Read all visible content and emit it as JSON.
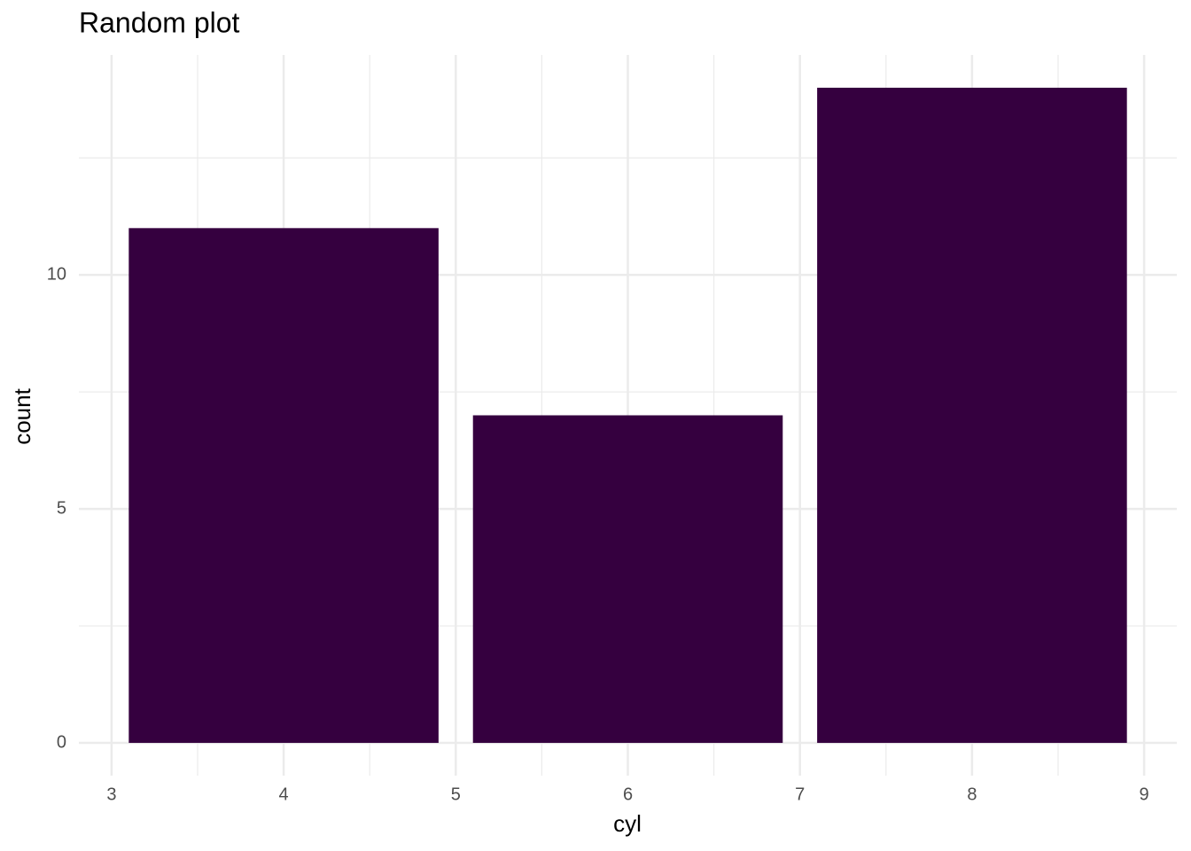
{
  "chart_data": {
    "type": "bar",
    "title": "Random plot",
    "x_label": "cyl",
    "y_label": "count",
    "x": [
      4,
      6,
      8
    ],
    "values": [
      11,
      7,
      14
    ],
    "bar_width": 1.8,
    "color": "#35003f",
    "xlim": [
      2.81,
      9.19
    ],
    "xticks": [
      3,
      4,
      5,
      6,
      7,
      8,
      9
    ],
    "ylim": [
      -0.7,
      14.7
    ],
    "yticks": [
      0,
      5,
      10
    ],
    "grid": true,
    "minor_grid": true
  }
}
